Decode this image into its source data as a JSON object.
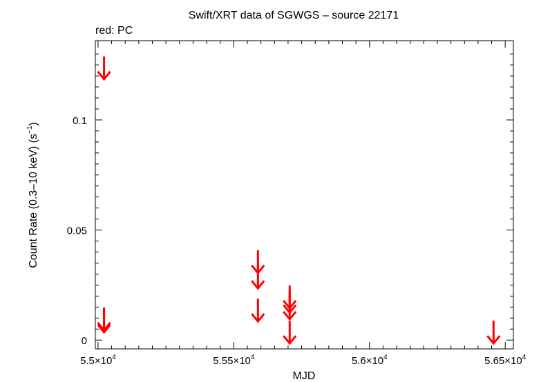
{
  "chart_data": {
    "type": "scatter",
    "title": "Swift/XRT data of SGWGS – source 22171",
    "legend_note": "red: PC",
    "xlabel": "MJD",
    "ylabel": "Count Rate (0.3–10 keV) (s",
    "ylabel_exp": "−1",
    "ylabel_close": ")",
    "xlim": [
      54990,
      56530
    ],
    "ylim": [
      -0.004,
      0.136
    ],
    "x_ticks": [
      {
        "value": 55000,
        "mantissa": "5.5×10",
        "exp": "4"
      },
      {
        "value": 55500,
        "mantissa": "5.55×10",
        "exp": "4"
      },
      {
        "value": 56000,
        "mantissa": "5.6×10",
        "exp": "4"
      },
      {
        "value": 56500,
        "mantissa": "5.65×10",
        "exp": "4"
      }
    ],
    "y_ticks": [
      {
        "value": 0,
        "label": "0"
      },
      {
        "value": 0.05,
        "label": "0.05"
      },
      {
        "value": 0.1,
        "label": "0.1"
      }
    ],
    "series": [
      {
        "name": "PC",
        "color": "#ff0000",
        "upper_limits": [
          {
            "x": 55022,
            "y": 0.1185
          },
          {
            "x": 55022,
            "y": 0.0045
          },
          {
            "x": 55022,
            "y": 0.0035
          },
          {
            "x": 55589,
            "y": 0.0305
          },
          {
            "x": 55589,
            "y": 0.0235
          },
          {
            "x": 55589,
            "y": 0.0085
          },
          {
            "x": 55706,
            "y": 0.0145
          },
          {
            "x": 55706,
            "y": 0.0125
          },
          {
            "x": 55706,
            "y": 0.0095
          },
          {
            "x": 55706,
            "y": -0.0015
          },
          {
            "x": 56457,
            "y": -0.0015
          }
        ]
      }
    ]
  }
}
